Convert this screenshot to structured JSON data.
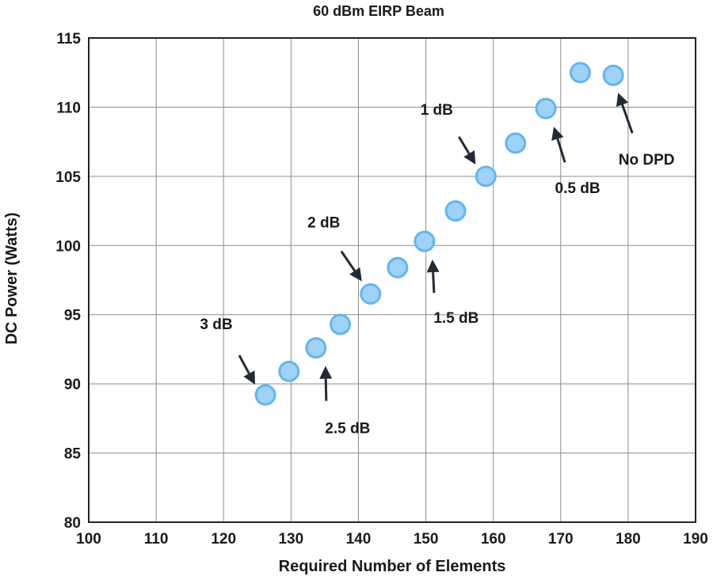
{
  "chart_data": {
    "type": "scatter",
    "title": "60 dBm EIRP Beam",
    "xlabel": "Required Number of Elements",
    "ylabel": "DC Power (Watts)",
    "xlim": [
      100,
      190
    ],
    "ylim": [
      80,
      115
    ],
    "xticks": [
      100,
      110,
      120,
      130,
      140,
      150,
      160,
      170,
      180,
      190
    ],
    "yticks": [
      80,
      85,
      90,
      95,
      100,
      105,
      110,
      115
    ],
    "grid": true,
    "colors": {
      "marker_fill": "#9fd2f7",
      "marker_edge": "#62b5f0",
      "arrow": "#222b36",
      "grid": "#8c8c8c"
    },
    "points": [
      {
        "x": 126.2,
        "y": 89.2
      },
      {
        "x": 129.7,
        "y": 90.9
      },
      {
        "x": 133.7,
        "y": 92.6
      },
      {
        "x": 137.3,
        "y": 94.3
      },
      {
        "x": 141.8,
        "y": 96.5
      },
      {
        "x": 145.8,
        "y": 98.4
      },
      {
        "x": 149.8,
        "y": 100.3
      },
      {
        "x": 154.4,
        "y": 102.5
      },
      {
        "x": 158.9,
        "y": 105.0
      },
      {
        "x": 163.3,
        "y": 107.4
      },
      {
        "x": 167.8,
        "y": 109.9
      },
      {
        "x": 172.9,
        "y": 112.5
      },
      {
        "x": 177.8,
        "y": 112.3
      }
    ],
    "annotations": [
      {
        "text": "3 dB",
        "point": 0
      },
      {
        "text": "2.5 dB",
        "point": 2
      },
      {
        "text": "2 dB",
        "point": 4
      },
      {
        "text": "1.5 dB",
        "point": 6
      },
      {
        "text": "1 dB",
        "point": 8
      },
      {
        "text": "0.5 dB",
        "point": 10
      },
      {
        "text": "No DPD",
        "point": 12
      }
    ]
  }
}
